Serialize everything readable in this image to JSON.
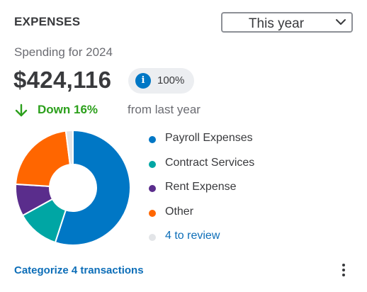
{
  "header": {
    "title": "EXPENSES",
    "period_select": {
      "selected": "This year",
      "icon": "chevron-down-icon"
    }
  },
  "summary": {
    "subtitle": "Spending for 2024",
    "total": "$424,116",
    "badge": {
      "icon": "info-icon",
      "icon_glyph": "i",
      "percent": "100%"
    },
    "change": {
      "icon": "arrow-down-icon",
      "direction_text": "Down 16%",
      "suffix": "from last year",
      "color": "#2ca01c"
    }
  },
  "chart_data": {
    "type": "pie",
    "donut": true,
    "slices": [
      {
        "label": "Payroll Expenses",
        "value": 55,
        "color": "#0077c5"
      },
      {
        "label": "Contract Services",
        "value": 12,
        "color": "#00a6a4"
      },
      {
        "label": "Rent Expense",
        "value": 9,
        "color": "#5a2d8c"
      },
      {
        "label": "Other",
        "value": 22,
        "color": "#ff6600"
      },
      {
        "label": "4 to review",
        "value": 2,
        "color": "#e3e5e8"
      }
    ]
  },
  "legend": [
    {
      "label": "Payroll Expenses",
      "color": "#0077c5",
      "link": false
    },
    {
      "label": "Contract Services",
      "color": "#00a6a4",
      "link": false
    },
    {
      "label": "Rent Expense",
      "color": "#5a2d8c",
      "link": false
    },
    {
      "label": "Other",
      "color": "#ff6600",
      "link": false
    },
    {
      "label": "4 to review",
      "color": "#e3e5e8",
      "link": true
    }
  ],
  "footer": {
    "action_label": "Categorize 4 transactions",
    "menu_icon": "more-vertical-icon"
  }
}
